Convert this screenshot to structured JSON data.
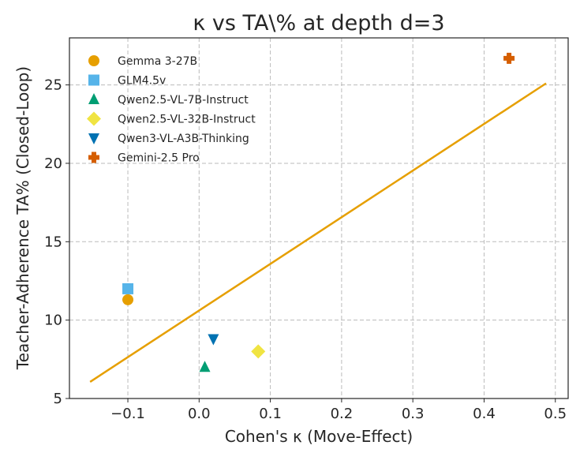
{
  "chart_data": {
    "type": "scatter",
    "title": "κ vs TA\\% at depth d=3",
    "xlabel": "Cohen's κ (Move-Effect)",
    "ylabel": "Teacher-Adherence TA% (Closed-Loop)",
    "xlim": [
      -0.182,
      0.518
    ],
    "ylim": [
      5,
      28
    ],
    "xticks": [
      -0.1,
      0.0,
      0.1,
      0.2,
      0.3,
      0.4,
      0.5
    ],
    "xtick_labels": [
      "−0.1",
      "0.0",
      "0.1",
      "0.2",
      "0.3",
      "0.4",
      "0.5"
    ],
    "yticks": [
      5,
      10,
      15,
      20,
      25
    ],
    "ytick_labels": [
      "5",
      "10",
      "15",
      "20",
      "25"
    ],
    "grid": true,
    "legend_position": "top-left",
    "series": [
      {
        "name": "Gemma 3-27B",
        "marker": "circle",
        "color": "#E69F00",
        "x": -0.1,
        "y": 11.3
      },
      {
        "name": "GLM4.5v",
        "marker": "square",
        "color": "#56B4E9",
        "x": -0.1,
        "y": 12.0
      },
      {
        "name": "Qwen2.5-VL-7B-Instruct",
        "marker": "triangle-up",
        "color": "#009E73",
        "x": 0.008,
        "y": 7.0
      },
      {
        "name": "Qwen2.5-VL-32B-Instruct",
        "marker": "diamond",
        "color": "#F0E442",
        "x": 0.083,
        "y": 8.0
      },
      {
        "name": "Qwen3-VL-A3B-Thinking",
        "marker": "triangle-down",
        "color": "#0072B2",
        "x": 0.02,
        "y": 8.8
      },
      {
        "name": "Gemini-2.5 Pro",
        "marker": "plus",
        "color": "#D55E00",
        "x": 0.435,
        "y": 26.7
      }
    ],
    "fit_line": {
      "color": "#E69F00",
      "x": [
        -0.153,
        0.487
      ],
      "y": [
        6.06,
        25.1
      ]
    }
  }
}
